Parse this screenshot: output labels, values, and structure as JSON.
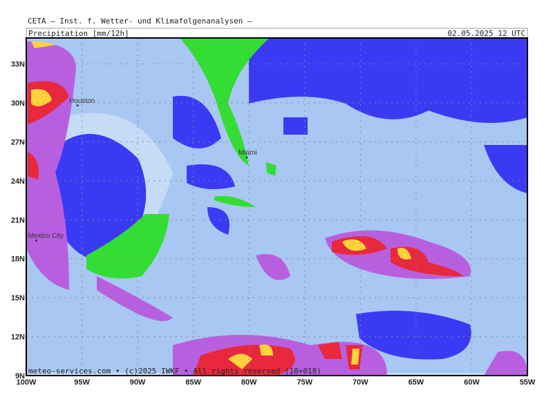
{
  "header": {
    "title": "CETA – Inst. f. Wetter- und Klimafolgenanalysen –",
    "parameter": "Precipitation [mm/12h]",
    "valid_time": "02.05.2025 12 UTC"
  },
  "map": {
    "lon_range": [
      -100,
      -55
    ],
    "lat_range": [
      9,
      35
    ],
    "lon_ticks": [
      {
        "value": -100,
        "label": "100W"
      },
      {
        "value": -95,
        "label": "95W"
      },
      {
        "value": -90,
        "label": "90W"
      },
      {
        "value": -85,
        "label": "85W"
      },
      {
        "value": -80,
        "label": "80W"
      },
      {
        "value": -75,
        "label": "75W"
      },
      {
        "value": -70,
        "label": "70W"
      },
      {
        "value": -65,
        "label": "65W"
      },
      {
        "value": -60,
        "label": "60W"
      },
      {
        "value": -55,
        "label": "55W"
      }
    ],
    "lat_ticks": [
      {
        "value": 9,
        "label": "9N"
      },
      {
        "value": 12,
        "label": "12N"
      },
      {
        "value": 15,
        "label": "15N"
      },
      {
        "value": 18,
        "label": "18N"
      },
      {
        "value": 21,
        "label": "21N"
      },
      {
        "value": 24,
        "label": "24N"
      },
      {
        "value": 27,
        "label": "27N"
      },
      {
        "value": 30,
        "label": "30N"
      },
      {
        "value": 33,
        "label": "33N"
      }
    ],
    "cities": [
      {
        "name": "Houston",
        "lon": -95.4,
        "lat": 29.8
      },
      {
        "name": "Miami",
        "lon": -80.2,
        "lat": 25.8
      },
      {
        "name": "Mexico City",
        "lon": -99.1,
        "lat": 19.4
      }
    ]
  },
  "footer": "meteo-services.com • (c)2025 IWKF • All rights reserved (18+018)"
}
